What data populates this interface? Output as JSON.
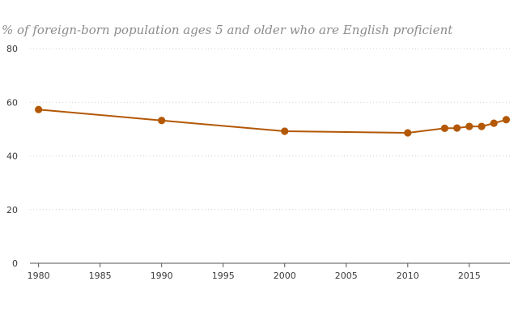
{
  "chart_data": {
    "type": "line",
    "title": "% of foreign-born population ages 5 and older who are English proficient",
    "xlabel": "",
    "ylabel": "",
    "xlim": [
      1979.3,
      2018.3
    ],
    "ylim": [
      0,
      80
    ],
    "x_ticks": [
      1980,
      1985,
      1990,
      1995,
      2000,
      2005,
      2010,
      2015
    ],
    "y_ticks": [
      0,
      20,
      40,
      60,
      80
    ],
    "grid": true,
    "legend": "none",
    "colors": {
      "series": "#b35806",
      "grid": "#d0d0d0",
      "axis": "#555555",
      "title": "#8c8c8c"
    },
    "series": [
      {
        "x": [
          1980,
          1990,
          2000,
          2010,
          2013,
          2014,
          2015,
          2016,
          2017,
          2018
        ],
        "values": [
          57.3,
          53.2,
          49.2,
          48.6,
          50.3,
          50.4,
          51.0,
          51.0,
          52.2,
          53.5
        ]
      }
    ]
  }
}
